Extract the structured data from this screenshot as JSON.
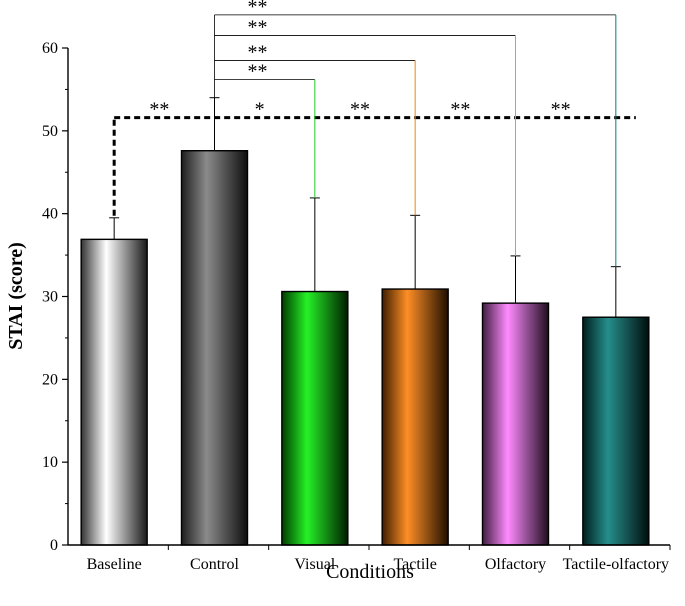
{
  "chart_data": {
    "type": "bar",
    "title": "",
    "xlabel": "Conditions",
    "ylabel": "STAI (score)",
    "ylim": [
      0,
      60
    ],
    "yticks": [
      "0",
      "10",
      "20",
      "30",
      "40",
      "50",
      "60"
    ],
    "categories": [
      "Baseline",
      "Control",
      "Visual",
      "Tactile",
      "Olfactory",
      "Tactile-olfactory"
    ],
    "values": [
      36.9,
      47.6,
      30.6,
      30.9,
      29.2,
      27.5
    ],
    "error": [
      2.6,
      6.4,
      11.3,
      8.9,
      5.7,
      6.1
    ],
    "colors": [
      "#d0d0d0",
      "#777777",
      "#00ee00",
      "#ff7a00",
      "#ff77ff",
      "#007a78"
    ],
    "legend": null,
    "grid": false,
    "comparisons": {
      "baseline_line_level": 51.6,
      "baseline_vs": [
        {
          "label": "**"
        },
        {
          "label": "*"
        },
        {
          "label": "**"
        },
        {
          "label": "**"
        },
        {
          "label": "**"
        }
      ],
      "control_vs": [
        {
          "label": "**",
          "level": 56.2
        },
        {
          "label": "**",
          "level": 58.5
        },
        {
          "label": "**",
          "level": 61.5
        },
        {
          "label": "**",
          "level": 64.0
        }
      ]
    }
  }
}
